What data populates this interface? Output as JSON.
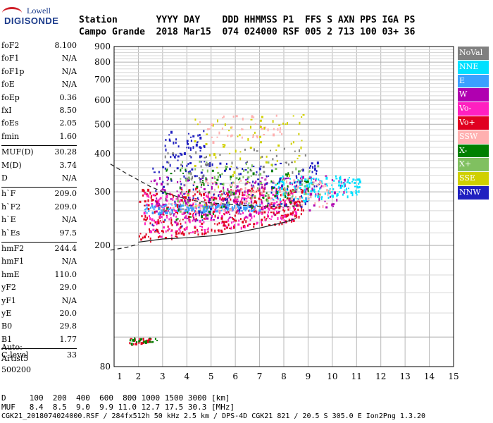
{
  "logo": {
    "line1": "Lowell",
    "line2": "DIGISONDE"
  },
  "header": {
    "row1": "Station       YYYY DAY    DDD HHMMSS P1  FFS S AXN PPS IGA PS",
    "row2": "Campo Grande  2018 Mar15  074 024000 RSF 005 2 713 100 03+ 36"
  },
  "params": {
    "group1": [
      {
        "name": "foF2",
        "value": "8.100"
      },
      {
        "name": "foF1",
        "value": "N/A"
      },
      {
        "name": "foF1p",
        "value": "N/A"
      },
      {
        "name": "foE",
        "value": "N/A"
      },
      {
        "name": "foEp",
        "value": "0.36"
      },
      {
        "name": "fxI",
        "value": "8.50"
      },
      {
        "name": "foEs",
        "value": "2.05"
      },
      {
        "name": "fmin",
        "value": "1.60"
      }
    ],
    "group2": [
      {
        "name": "MUF(D)",
        "value": "30.28"
      },
      {
        "name": "M(D)",
        "value": "3.74"
      },
      {
        "name": "D",
        "value": "N/A"
      }
    ],
    "group3": [
      {
        "name": "h`F",
        "value": "209.0"
      },
      {
        "name": "h`F2",
        "value": "209.0"
      },
      {
        "name": "h`E",
        "value": "N/A"
      },
      {
        "name": "h`Es",
        "value": "97.5"
      }
    ],
    "group4": [
      {
        "name": "hmF2",
        "value": "244.4"
      },
      {
        "name": "hmF1",
        "value": "N/A"
      },
      {
        "name": "hmE",
        "value": "110.0"
      },
      {
        "name": "yF2",
        "value": "29.0"
      },
      {
        "name": "yF1",
        "value": "N/A"
      },
      {
        "name": "yE",
        "value": "20.0"
      },
      {
        "name": "B0",
        "value": "29.8"
      },
      {
        "name": "B1",
        "value": "1.77"
      }
    ],
    "group5": [
      {
        "name": "C-level",
        "value": "33"
      }
    ]
  },
  "auto": {
    "line1": "Auto:",
    "line2": "Artist5",
    "line3": "500200"
  },
  "legend": [
    {
      "label": "NoVal",
      "color": "#808080"
    },
    {
      "label": "NNE",
      "color": "#00e0ff"
    },
    {
      "label": "E",
      "color": "#3aa0ff"
    },
    {
      "label": "W",
      "color": "#b000b0"
    },
    {
      "label": "Vo-",
      "color": "#ff20c0"
    },
    {
      "label": "Vo+",
      "color": "#e00020"
    },
    {
      "label": "SSW",
      "color": "#ffb0b0"
    },
    {
      "label": "X-",
      "color": "#008000"
    },
    {
      "label": "X+",
      "color": "#80c060"
    },
    {
      "label": "SSE",
      "color": "#d0d000"
    },
    {
      "label": "NNW",
      "color": "#2020c0"
    }
  ],
  "bottom": {
    "line1": "D     100  200  400  600  800 1000 1500 3000 [km]",
    "line2": "MUF   8.4  8.5  9.0  9.9 11.0 12.7 17.5 30.3 [MHz]",
    "line3": "CGK21_2018074024000.RSF / 284fx512h 50 kHz 2.5 km / DPS-4D CGK21 821 / 20.5 S 305.0 E Ion2Png 1.3.20"
  },
  "chart_data": {
    "type": "scatter",
    "title": "",
    "xlabel": "",
    "ylabel": "",
    "xlim": [
      1,
      15
    ],
    "ylim": [
      80,
      900
    ],
    "x_ticks": [
      1,
      2,
      3,
      4,
      5,
      6,
      7,
      8,
      9,
      10,
      11,
      12,
      13,
      14,
      15
    ],
    "y_ticks": [
      80,
      200,
      300,
      400,
      500,
      600,
      700,
      800,
      900
    ],
    "y_scale": "log",
    "grid": true,
    "profile_curve": {
      "name": "",
      "style": "dashed",
      "x": [
        0.85,
        1.5,
        2.0,
        2.5,
        3.0,
        3.5,
        4.0,
        4.5,
        5.0,
        5.5,
        6.0,
        6.5,
        7.0,
        7.5,
        8.0,
        8.5,
        8.7
      ],
      "y": [
        370,
        345,
        328,
        312,
        300,
        291,
        284,
        279,
        276,
        274,
        272,
        270,
        269,
        268,
        268,
        270,
        272
      ]
    },
    "lower_curve": {
      "name": "",
      "style": "dashed",
      "x": [
        0.85,
        1.5,
        2.0
      ],
      "y": [
        193,
        197,
        202
      ]
    },
    "trace_curve": {
      "name": "",
      "style": "solid",
      "x": [
        2.0,
        3.0,
        4.0,
        5.0,
        6.0,
        7.0,
        8.0,
        8.5
      ],
      "y": [
        205,
        210,
        212,
        215,
        220,
        228,
        238,
        245
      ]
    },
    "echo_regions": [
      {
        "direction": "Vo+",
        "x_range": [
          2.0,
          8.8
        ],
        "y_range": [
          205,
          310
        ],
        "count": 420
      },
      {
        "direction": "Vo-",
        "x_range": [
          2.2,
          8.5
        ],
        "y_range": [
          210,
          300
        ],
        "count": 250
      },
      {
        "direction": "W",
        "x_range": [
          2.5,
          10.5
        ],
        "y_range": [
          230,
          340
        ],
        "count": 200
      },
      {
        "direction": "E",
        "x_range": [
          2.2,
          7.0
        ],
        "y_range": [
          255,
          275
        ],
        "count": 160
      },
      {
        "direction": "NNE",
        "x_range": [
          7.5,
          11.2
        ],
        "y_range": [
          270,
          340
        ],
        "count": 150
      },
      {
        "direction": "NNW",
        "x_range": [
          2.5,
          9.5
        ],
        "y_range": [
          220,
          380
        ],
        "count": 160
      },
      {
        "direction": "SSW",
        "x_range": [
          3.0,
          10.0
        ],
        "y_range": [
          240,
          330
        ],
        "count": 120
      },
      {
        "direction": "X-",
        "x_range": [
          3.0,
          9.0
        ],
        "y_range": [
          240,
          360
        ],
        "count": 80
      },
      {
        "direction": "X+",
        "x_range": [
          3.5,
          9.5
        ],
        "y_range": [
          250,
          380
        ],
        "count": 80
      },
      {
        "direction": "SSE",
        "x_range": [
          4.0,
          9.0
        ],
        "y_range": [
          260,
          540
        ],
        "count": 70
      },
      {
        "direction": "NoVal",
        "x_range": [
          3.0,
          9.0
        ],
        "y_range": [
          250,
          420
        ],
        "count": 60
      },
      {
        "direction": "NNW",
        "x_range": [
          3.0,
          4.8
        ],
        "y_range": [
          350,
          480
        ],
        "count": 50
      },
      {
        "direction": "SSW",
        "x_range": [
          4.5,
          8.0
        ],
        "y_range": [
          430,
          540
        ],
        "count": 40
      },
      {
        "direction": "Vo+",
        "x_range": [
          1.6,
          2.5
        ],
        "y_range": [
          95,
          100
        ],
        "count": 25
      },
      {
        "direction": "X-",
        "x_range": [
          1.6,
          2.8
        ],
        "y_range": [
          95,
          100
        ],
        "count": 20
      }
    ]
  }
}
